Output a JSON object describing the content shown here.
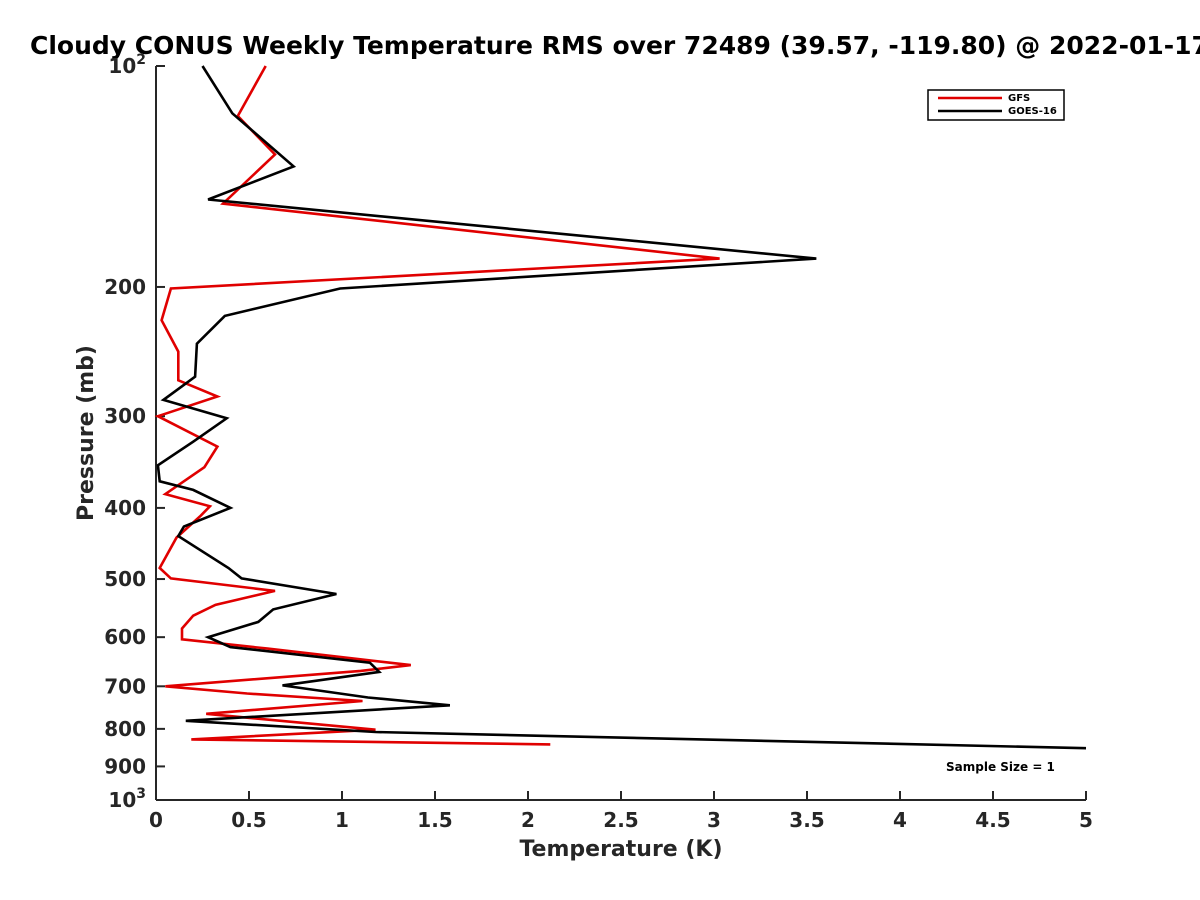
{
  "chart_data": {
    "type": "line",
    "title": "Cloudy CONUS Weekly Temperature RMS over 72489 (39.57, -119.80) @ 2022-01-17",
    "xlabel": "Temperature (K)",
    "ylabel": "Pressure (mb)",
    "xlim": [
      0,
      5
    ],
    "ylim": [
      100,
      1000
    ],
    "yscale": "log",
    "y_reversed": true,
    "x_ticks": [
      "0",
      "0.5",
      "1",
      "1.5",
      "2",
      "2.5",
      "3",
      "3.5",
      "4",
      "4.5",
      "5"
    ],
    "y_ticks": [
      {
        "value": 100,
        "base": "10",
        "exp": "2"
      },
      {
        "value": 200,
        "label": "200"
      },
      {
        "value": 300,
        "label": "300"
      },
      {
        "value": 400,
        "label": "400"
      },
      {
        "value": 500,
        "label": "500"
      },
      {
        "value": 600,
        "label": "600"
      },
      {
        "value": 700,
        "label": "700"
      },
      {
        "value": 800,
        "label": "800"
      },
      {
        "value": 900,
        "label": "900"
      },
      {
        "value": 1000,
        "base": "10",
        "exp": "3"
      }
    ],
    "grid": false,
    "legend_position": "top-right",
    "annotation": "Sample Size = 1",
    "series": [
      {
        "name": "GFS",
        "color": "#e00000",
        "points": [
          [
            0.59,
            100
          ],
          [
            0.44,
            117
          ],
          [
            0.64,
            132
          ],
          [
            0.36,
            154
          ],
          [
            3.03,
            183
          ],
          [
            0.08,
            201
          ],
          [
            0.03,
            222
          ],
          [
            0.12,
            245
          ],
          [
            0.12,
            268
          ],
          [
            0.33,
            282
          ],
          [
            0.01,
            300
          ],
          [
            0.33,
            330
          ],
          [
            0.26,
            352
          ],
          [
            0.05,
            383
          ],
          [
            0.29,
            398
          ],
          [
            0.24,
            410
          ],
          [
            0.11,
            439
          ],
          [
            0.02,
            483
          ],
          [
            0.08,
            499
          ],
          [
            0.64,
            519
          ],
          [
            0.32,
            542
          ],
          [
            0.2,
            561
          ],
          [
            0.14,
            584
          ],
          [
            0.14,
            604
          ],
          [
            0.6,
            622
          ],
          [
            1.37,
            655
          ],
          [
            1.1,
            667
          ],
          [
            0.05,
            700
          ],
          [
            0.49,
            716
          ],
          [
            1.11,
            733
          ],
          [
            0.27,
            763
          ],
          [
            1.18,
            802
          ],
          [
            0.19,
            827
          ],
          [
            2.12,
            840
          ]
        ]
      },
      {
        "name": "GOES-16",
        "color": "#000000",
        "points": [
          [
            0.25,
            100
          ],
          [
            0.41,
            116
          ],
          [
            0.74,
            137
          ],
          [
            0.28,
            152
          ],
          [
            3.55,
            183
          ],
          [
            0.99,
            201
          ],
          [
            0.37,
            219
          ],
          [
            0.22,
            239
          ],
          [
            0.21,
            265
          ],
          [
            0.04,
            285
          ],
          [
            0.38,
            302
          ],
          [
            0.2,
            325
          ],
          [
            0.01,
            350
          ],
          [
            0.02,
            368
          ],
          [
            0.2,
            378
          ],
          [
            0.4,
            400
          ],
          [
            0.15,
            424
          ],
          [
            0.12,
            437
          ],
          [
            0.39,
            483
          ],
          [
            0.46,
            499
          ],
          [
            0.97,
            524
          ],
          [
            0.63,
            550
          ],
          [
            0.55,
            572
          ],
          [
            0.28,
            600
          ],
          [
            0.4,
            619
          ],
          [
            1.15,
            650
          ],
          [
            1.2,
            669
          ],
          [
            0.68,
            698
          ],
          [
            1.14,
            725
          ],
          [
            1.58,
            743
          ],
          [
            0.16,
            780
          ],
          [
            1.18,
            808
          ],
          [
            5.0,
            850
          ]
        ]
      }
    ]
  }
}
